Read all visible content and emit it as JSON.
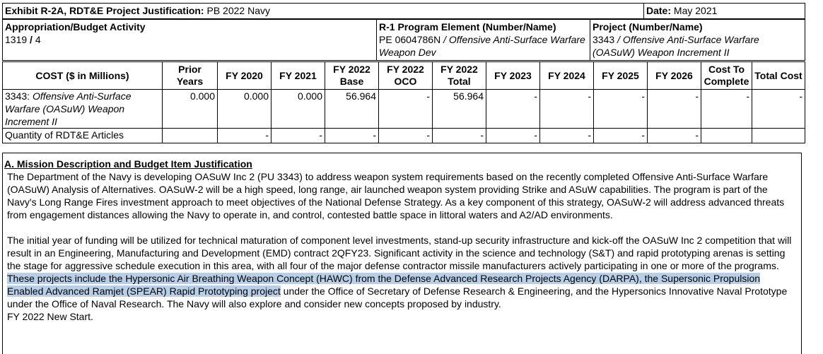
{
  "exhibit": {
    "title_bold": "Exhibit R-2A",
    "title_bold_rest": ", RDT&E Project Justification:",
    "title_value": "PB 2022 Navy",
    "date_label": "Date:",
    "date_value": "May 2021"
  },
  "appropriation": {
    "label": "Appropriation/Budget Activity",
    "value_a": "1319",
    "sep": " / ",
    "value_b": "4"
  },
  "program_element": {
    "label": "R-1 Program Element (Number/Name)",
    "number": "PE 0604786N",
    "sep": " / ",
    "name": "Offensive Anti-Surface Warfare Weapon Dev"
  },
  "project": {
    "label": "Project (Number/Name)",
    "number": "3343",
    "sep": " / ",
    "name": "Offensive Anti-Surface Warfare (OASuW) Weapon Increment II"
  },
  "cost_table": {
    "header": {
      "cost": "COST ($ in Millions)",
      "prior_years": "Prior Years",
      "fy2020": "FY 2020",
      "fy2021": "FY 2021",
      "fy2022_base": "FY 2022 Base",
      "fy2022_oco": "FY 2022 OCO",
      "fy2022_total": "FY 2022 Total",
      "fy2023": "FY 2023",
      "fy2024": "FY 2024",
      "fy2025": "FY 2025",
      "fy2026": "FY 2026",
      "cost_to_complete": "Cost To Complete",
      "total_cost": "Total Cost"
    },
    "project_row": {
      "number": "3343:",
      "name": "Offensive Anti-Surface Warfare (OASuW) Weapon Increment II",
      "prior_years": "0.000",
      "fy2020": "0.000",
      "fy2021": "0.000",
      "fy2022_base": "56.964",
      "fy2022_oco": "-",
      "fy2022_total": "56.964",
      "fy2023": "-",
      "fy2024": "-",
      "fy2025": "-",
      "fy2026": "-",
      "cost_to_complete": "-",
      "total_cost": "-"
    },
    "quantity_row": {
      "label": "Quantity of RDT&E Articles",
      "prior_years": "",
      "fy2020": "-",
      "fy2021": "-",
      "fy2022_base": "-",
      "fy2022_oco": "-",
      "fy2022_total": "-",
      "fy2023": "-",
      "fy2024": "-",
      "fy2025": "-",
      "fy2026": "-",
      "cost_to_complete": "",
      "total_cost": ""
    }
  },
  "mission": {
    "heading": "A. Mission Description and Budget Item Justification",
    "paragraph1": "The Department of the Navy is developing OASuW Inc 2 (PU 3343) to address weapon system requirements based on the recently completed Offensive Anti-Surface Warfare (OASuW) Analysis of Alternatives. OASuW-2 will be a high speed, long range, air launched weapon system providing Strike and ASuW capabilities. The program is part of the Navy's Long Range Fires investment approach to meet objectives of the National Defense Strategy. As a key component of this strategy, OASuW-2 will address advanced threats from engagement distances allowing the Navy to operate in, and control, contested battle space in littoral waters and A2/AD environments.",
    "paragraph2_before": "The initial year of funding will be utilized for technical maturation of component level investments, stand-up security infrastructure and kick-off the OASuW Inc 2 competition that will result in an Engineering, Manufacturing and Development (EMD) contract 2QFY23.  Significant activity in the science and technology (S&T) and rapid prototyping arenas is setting the stage for aggressive schedule execution in this area, with all four of the major defense contractor missile manufacturers actively participating in one or more of the programs.",
    "paragraph2_highlight": " These projects include the Hypersonic Air Breathing Weapon Concept (HAWC) from the Defense Advanced Research Projects Agency (DARPA), the Supersonic Propulsion Enabled Advanced Ramjet (SPEAR) Rapid Prototyping project",
    "paragraph2_after": " under the Office of Secretary of Defense Research & Engineering, and the Hypersonics Innovative Naval Prototype under the Office of Naval Research.  The Navy will also explore and consider new concepts proposed by industry.",
    "closing": "FY 2022 New Start."
  }
}
